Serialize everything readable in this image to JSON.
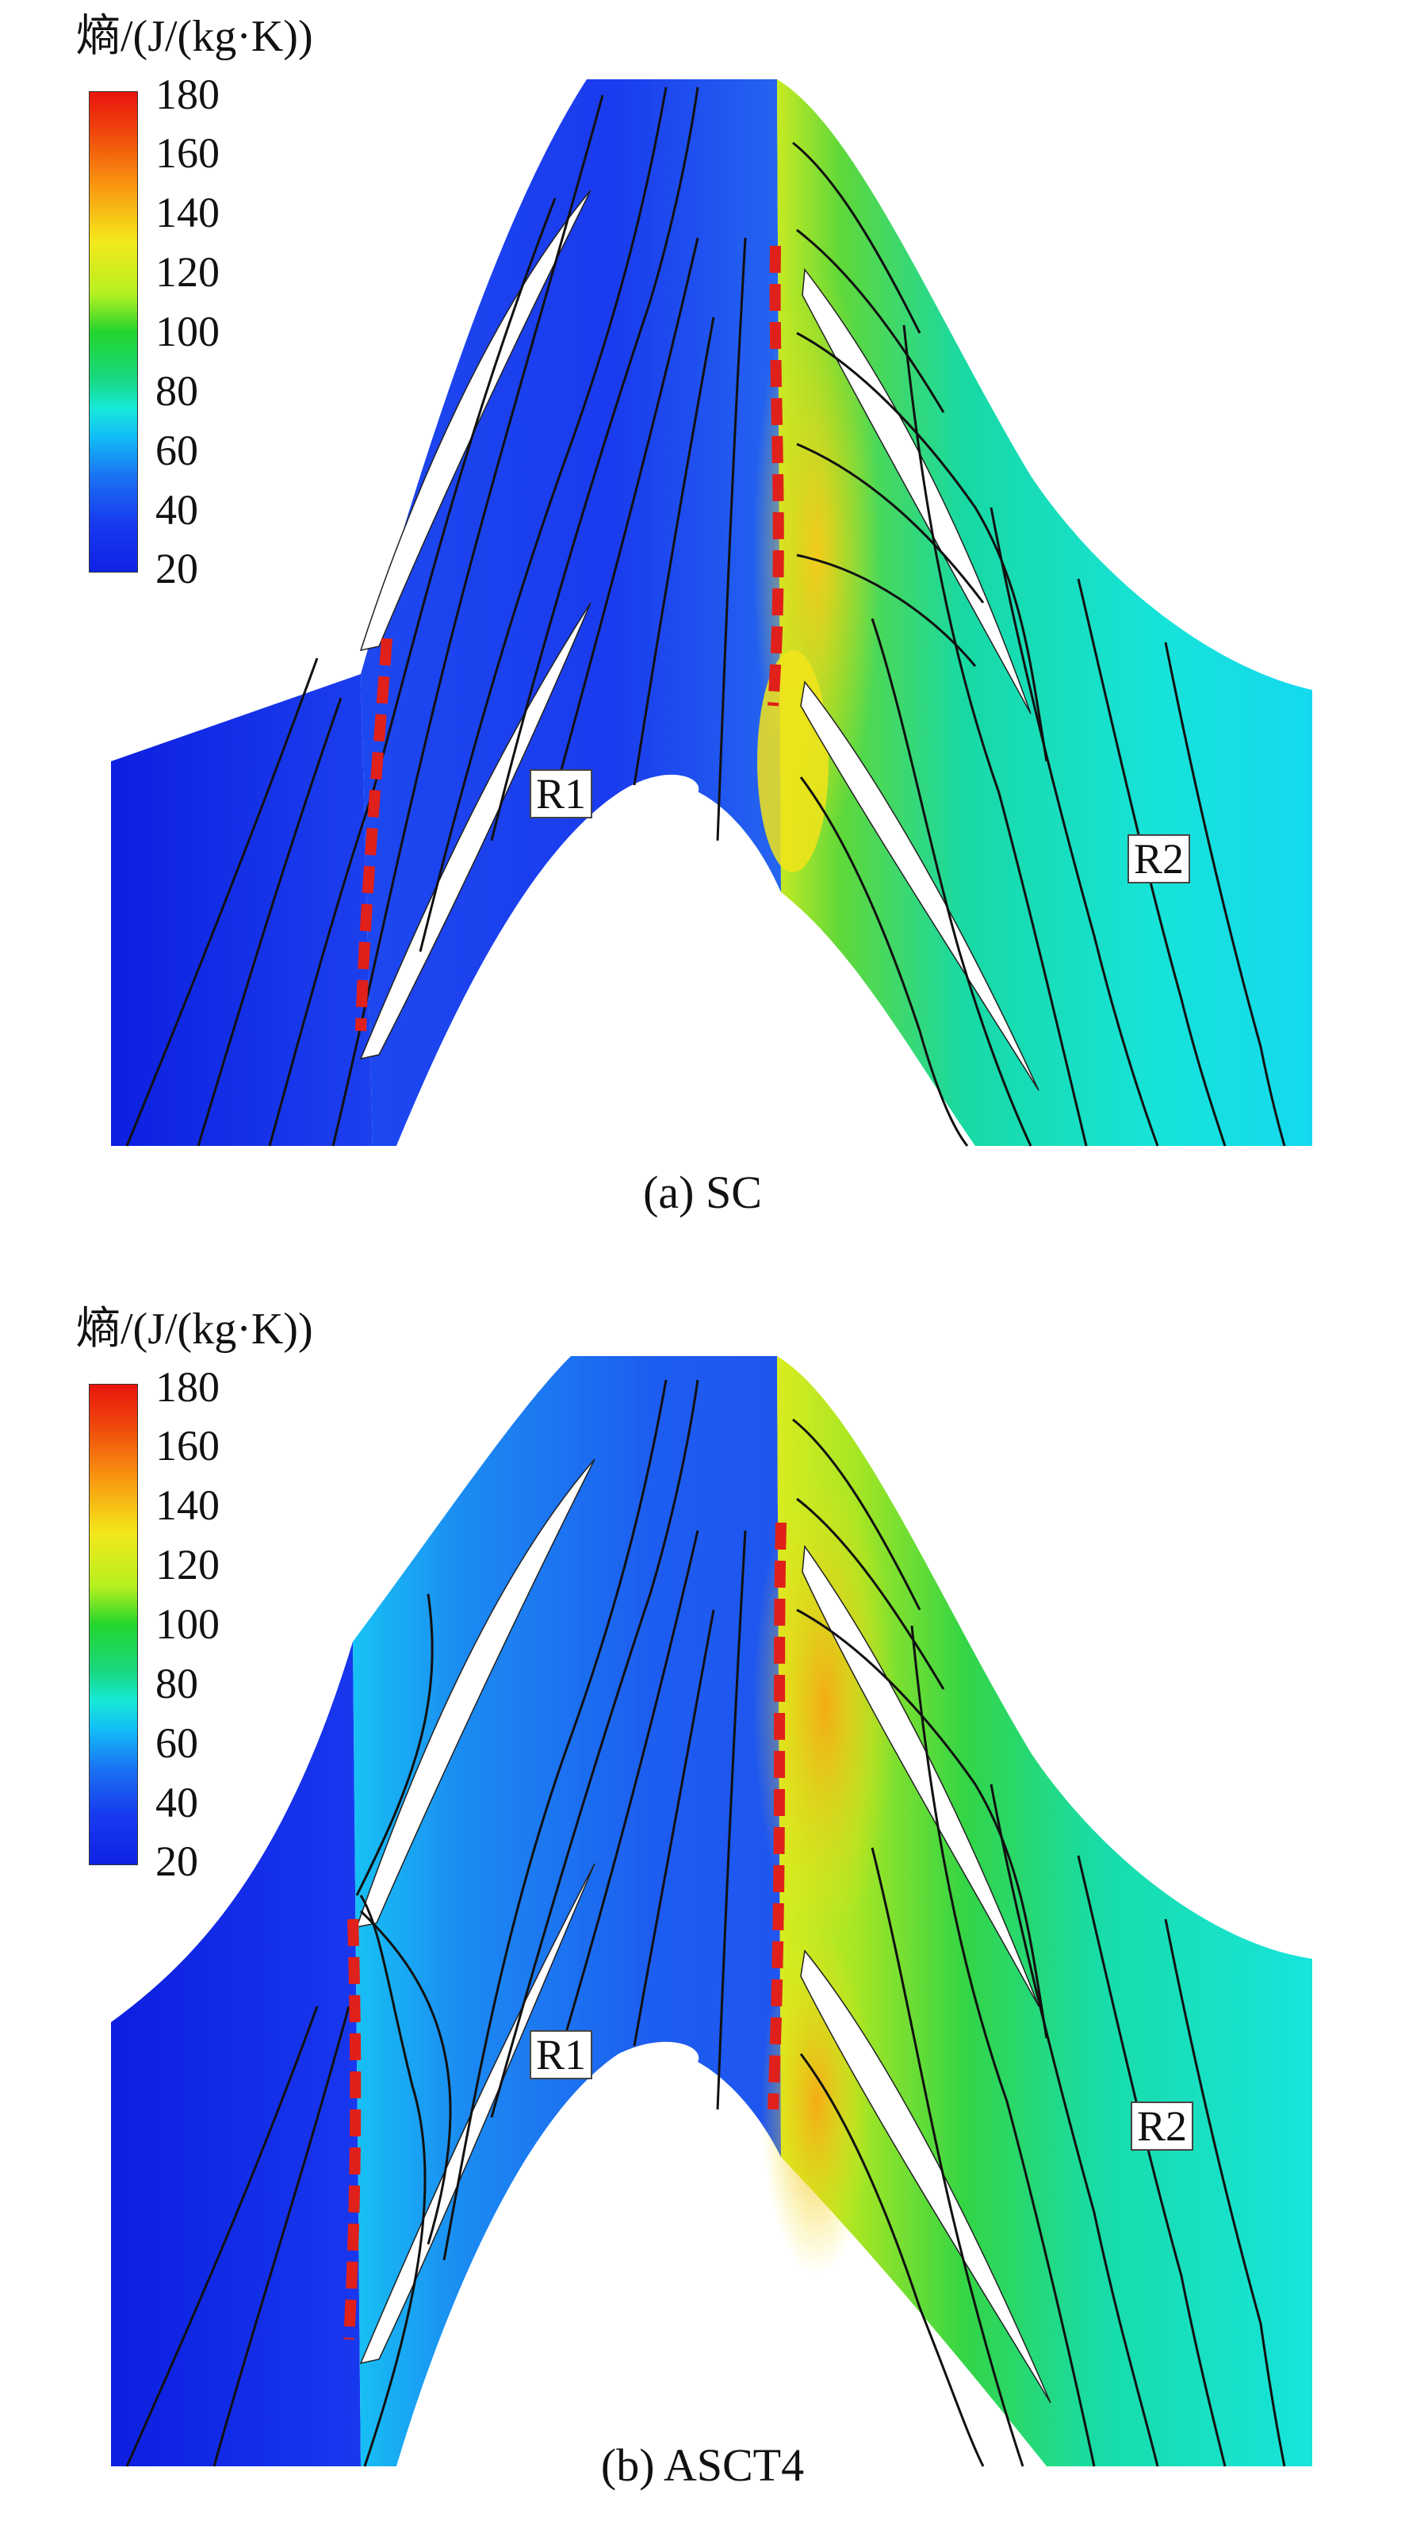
{
  "panels": [
    {
      "caption": "(a) SC",
      "colorbar": {
        "title": "熵/(J/(kg·K))",
        "ticks": [
          "180",
          "160",
          "140",
          "120",
          "100",
          "80",
          "60",
          "40",
          "20"
        ]
      },
      "region_labels": [
        "R1",
        "R2"
      ]
    },
    {
      "caption": "(b) ASCT4",
      "colorbar": {
        "title": "熵/(J/(kg·K))",
        "ticks": [
          "180",
          "160",
          "140",
          "120",
          "100",
          "80",
          "60",
          "40",
          "20"
        ]
      },
      "region_labels": [
        "R1",
        "R2"
      ]
    }
  ],
  "colors": {
    "low": "#0f22e4",
    "mid_blue": "#1a73f2",
    "cyan": "#17e9d9",
    "green": "#24d52d",
    "yellow": "#f3e81b",
    "orange": "#f99a10",
    "high": "#e8140d",
    "marker_dash": "#e0201a",
    "streamline": "#111111"
  }
}
